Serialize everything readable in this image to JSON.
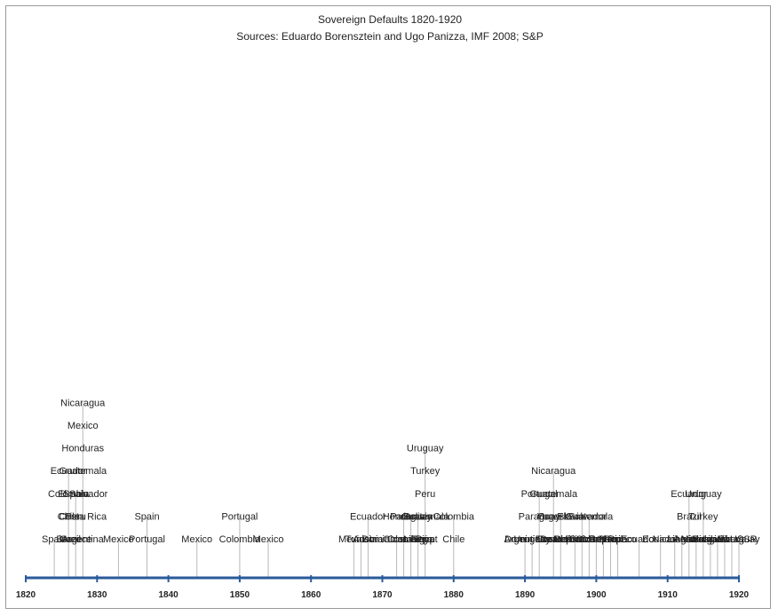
{
  "chart_data": {
    "type": "timeline",
    "title": "Sovereign Defaults 1820-1920",
    "subtitle": "Sources: Eduardo Borensztein and Ugo Panizza, IMF 2008; S&P",
    "xlim": [
      1820,
      1920
    ],
    "ticks": [
      1820,
      1830,
      1840,
      1850,
      1860,
      1870,
      1880,
      1890,
      1900,
      1910,
      1920
    ],
    "axis_color": "#2a5b9a",
    "line_color": "#b8b8b8",
    "events": [
      {
        "year": 1824,
        "label": "Spain"
      },
      {
        "year": 1826,
        "label": "Brazil"
      },
      {
        "year": 1826,
        "label": "Chile"
      },
      {
        "year": 1826,
        "label": "Colombia"
      },
      {
        "year": 1826,
        "label": "Ecuador"
      },
      {
        "year": 1827,
        "label": "Greece"
      },
      {
        "year": 1827,
        "label": "Peru"
      },
      {
        "year": 1827,
        "label": "Spain"
      },
      {
        "year": 1828,
        "label": "Argentina"
      },
      {
        "year": 1828,
        "label": "Costa Rica"
      },
      {
        "year": 1828,
        "label": "El Salvador"
      },
      {
        "year": 1828,
        "label": "Guatemala"
      },
      {
        "year": 1828,
        "label": "Honduras"
      },
      {
        "year": 1828,
        "label": "Mexico"
      },
      {
        "year": 1828,
        "label": "Nicaragua"
      },
      {
        "year": 1833,
        "label": "Mexico"
      },
      {
        "year": 1837,
        "label": "Portugal"
      },
      {
        "year": 1837,
        "label": "Spain"
      },
      {
        "year": 1844,
        "label": "Mexico"
      },
      {
        "year": 1850,
        "label": "Colombia"
      },
      {
        "year": 1850,
        "label": "Portugal"
      },
      {
        "year": 1854,
        "label": "Mexico"
      },
      {
        "year": 1866,
        "label": "Mexico"
      },
      {
        "year": 1867,
        "label": "Tunisia"
      },
      {
        "year": 1868,
        "label": "Austria"
      },
      {
        "year": 1868,
        "label": "Ecuador"
      },
      {
        "year": 1872,
        "label": "Dominican Rep."
      },
      {
        "year": 1873,
        "label": "Colombia"
      },
      {
        "year": 1873,
        "label": "Honduras"
      },
      {
        "year": 1874,
        "label": "Costa Rica"
      },
      {
        "year": 1874,
        "label": "Paraguay"
      },
      {
        "year": 1875,
        "label": "Liberia"
      },
      {
        "year": 1875,
        "label": "Bolivia"
      },
      {
        "year": 1876,
        "label": "Egypt"
      },
      {
        "year": 1876,
        "label": "Guatemala"
      },
      {
        "year": 1876,
        "label": "Peru"
      },
      {
        "year": 1876,
        "label": "Turkey"
      },
      {
        "year": 1876,
        "label": "Uruguay"
      },
      {
        "year": 1880,
        "label": "Chile"
      },
      {
        "year": 1880,
        "label": "Colombia"
      },
      {
        "year": 1890,
        "label": "Argentina"
      },
      {
        "year": 1891,
        "label": "Uruguay"
      },
      {
        "year": 1892,
        "label": "Dominican Rep."
      },
      {
        "year": 1892,
        "label": "Paraguay"
      },
      {
        "year": 1892,
        "label": "Portugal"
      },
      {
        "year": 1894,
        "label": "Ecuador"
      },
      {
        "year": 1894,
        "label": "Greece"
      },
      {
        "year": 1894,
        "label": "Guatemala"
      },
      {
        "year": 1894,
        "label": "Nicaragua"
      },
      {
        "year": 1895,
        "label": "Costa Rica"
      },
      {
        "year": 1895,
        "label": "Yugoslavia"
      },
      {
        "year": 1897,
        "label": "Dominican Rep."
      },
      {
        "year": 1898,
        "label": "Brazil"
      },
      {
        "year": 1898,
        "label": "El Salvador"
      },
      {
        "year": 1899,
        "label": "Dominican Rep."
      },
      {
        "year": 1899,
        "label": "Guatemala"
      },
      {
        "year": 1900,
        "label": "Colombia"
      },
      {
        "year": 1901,
        "label": "Costa Rica"
      },
      {
        "year": 1902,
        "label": "Brazil"
      },
      {
        "year": 1903,
        "label": "Morocco"
      },
      {
        "year": 1906,
        "label": "Ecuador"
      },
      {
        "year": 1909,
        "label": "Ecuador"
      },
      {
        "year": 1911,
        "label": "Nicaragua"
      },
      {
        "year": 1912,
        "label": "Liberia"
      },
      {
        "year": 1913,
        "label": "Austria"
      },
      {
        "year": 1913,
        "label": "Brazil"
      },
      {
        "year": 1913,
        "label": "Ecuador"
      },
      {
        "year": 1914,
        "label": "Mexico"
      },
      {
        "year": 1915,
        "label": "Nicaragua"
      },
      {
        "year": 1915,
        "label": "Turkey"
      },
      {
        "year": 1915,
        "label": "Uruguay"
      },
      {
        "year": 1916,
        "label": "Bulgaria"
      },
      {
        "year": 1917,
        "label": "Liberia"
      },
      {
        "year": 1918,
        "label": "Russia / USSR"
      },
      {
        "year": 1919,
        "label": "Liberia"
      },
      {
        "year": 1920,
        "label": "Paraguay"
      }
    ]
  }
}
